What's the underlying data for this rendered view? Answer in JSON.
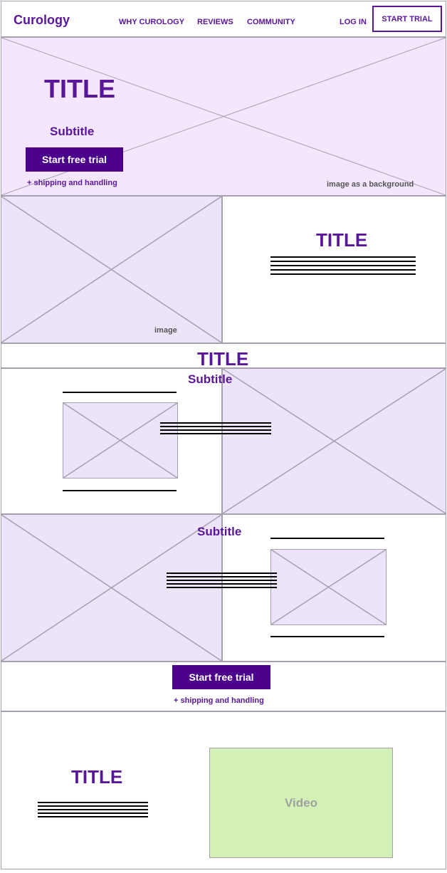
{
  "header": {
    "logo": "Curology",
    "nav": [
      "WHY CUROLOGY",
      "REVIEWS",
      "COMMUNITY"
    ],
    "login": "LOG IN",
    "start_trial": "START TRIAL"
  },
  "hero": {
    "title": "TITLE",
    "subtitle": "Subtitle",
    "cta": "Start free trial",
    "note": "+ shipping and handling",
    "caption": "image as a background"
  },
  "section2": {
    "caption": "image",
    "title": "TITLE"
  },
  "section3": {
    "title": "TITLE",
    "subtitle": "Subtitle"
  },
  "section4": {
    "subtitle": "Subtitle"
  },
  "cta_band": {
    "cta": "Start free trial",
    "note": "+ shipping and handling"
  },
  "video_section": {
    "title": "TITLE",
    "video_label": "Video"
  },
  "colors": {
    "brand": "#5a169a",
    "button": "#4b008c",
    "placeholder": "#ede3fa",
    "video": "#d3f1b6"
  }
}
